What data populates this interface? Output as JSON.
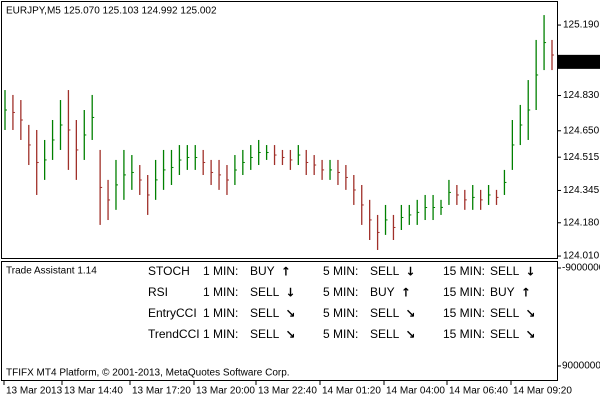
{
  "window": {
    "header": "EURJPY,M5  125.070 125.103 124.992 125.002",
    "footer": "TFIFX MT4 Platform, © 2001-2013, MetaQuotes Software Corp."
  },
  "chart_data": {
    "type": "ohlc-bars",
    "ylim": [
      124.0,
      125.318
    ],
    "yticks": [
      {
        "value": 125.19,
        "label": "125.190"
      },
      {
        "value": 124.83,
        "label": "124.830"
      },
      {
        "value": 124.65,
        "label": "124.650"
      },
      124.515,
      124.345,
      {
        "value": 124.18,
        "label": "124.180"
      },
      {
        "value": 124.01,
        "label": "124.010"
      }
    ],
    "last_price": 125.002,
    "up_color": "#008000",
    "down_color": "#a0302a",
    "high": [
      124.858,
      124.833,
      124.807,
      124.68,
      124.654,
      124.603,
      124.705,
      124.807,
      124.858,
      124.705,
      124.756,
      124.833,
      124.552,
      124.399,
      124.501,
      124.552,
      124.526,
      124.475,
      124.424,
      124.501,
      124.552,
      124.552,
      124.577,
      124.577,
      124.577,
      124.552,
      124.501,
      124.501,
      124.475,
      124.526,
      124.552,
      124.577,
      124.603,
      124.577,
      124.577,
      124.552,
      124.552,
      124.577,
      124.552,
      124.526,
      124.501,
      124.501,
      124.501,
      124.475,
      124.424,
      124.373,
      124.297,
      124.22,
      124.271,
      124.22,
      124.271,
      124.271,
      124.297,
      124.322,
      124.322,
      124.297,
      124.399,
      124.373,
      124.348,
      124.373,
      124.348,
      124.373,
      124.348,
      124.45,
      124.705,
      124.782,
      124.909,
      125.114,
      125.241,
      125.114
    ],
    "low": [
      124.654,
      124.654,
      124.603,
      124.475,
      124.322,
      124.399,
      124.501,
      124.552,
      124.45,
      124.399,
      124.501,
      124.603,
      124.169,
      124.194,
      124.246,
      124.297,
      124.348,
      124.322,
      124.22,
      124.297,
      124.348,
      124.373,
      124.424,
      124.45,
      124.45,
      124.424,
      124.373,
      124.348,
      124.322,
      124.373,
      124.424,
      124.45,
      124.475,
      124.501,
      124.475,
      124.475,
      124.45,
      124.475,
      124.424,
      124.424,
      124.399,
      124.399,
      124.373,
      124.348,
      124.271,
      124.169,
      124.092,
      124.041,
      124.118,
      124.092,
      124.143,
      124.169,
      124.169,
      124.194,
      124.194,
      124.22,
      124.271,
      124.271,
      124.246,
      124.246,
      124.246,
      124.271,
      124.271,
      124.322,
      124.45,
      124.577,
      124.603,
      124.756,
      124.96,
      124.96
    ],
    "x_labels": [
      "13 Mar 2013",
      "13 Mar 14:40",
      "13 Mar 17:20",
      "13 Mar 20:00",
      "13 Mar 22:40",
      "14 Mar 01:20",
      "14 Mar 04:00",
      "14 Mar 06:40",
      "14 Mar 09:20"
    ]
  },
  "indicator": {
    "name": "Trade Assistant 1.14",
    "yticks": [
      -9000000,
      9000000
    ],
    "rows": [
      {
        "label": "STOCH",
        "color": "#e6dca0",
        "cells": [
          {
            "tf": "1 MIN:",
            "signal": "BUY",
            "arrow": "↑",
            "color": "#00c000"
          },
          {
            "tf": "5 MIN:",
            "signal": "SELL",
            "arrow": "↓",
            "color": "#e00000"
          },
          {
            "tf": "15 MIN:",
            "signal": "SELL",
            "arrow": "↓",
            "color": "#e00000"
          }
        ]
      },
      {
        "label": "RSI",
        "color": "#e6d488",
        "cells": [
          {
            "tf": "1 MIN:",
            "signal": "SELL",
            "arrow": "↓",
            "color": "#e00000"
          },
          {
            "tf": "5 MIN:",
            "signal": "BUY",
            "arrow": "↑",
            "color": "#00c000"
          },
          {
            "tf": "15 MIN:",
            "signal": "BUY",
            "arrow": "↑",
            "color": "#00c000"
          }
        ]
      },
      {
        "label": "EntryCCI",
        "color": "#d8c8a0",
        "cells": [
          {
            "tf": "1 MIN:",
            "signal": "SELL",
            "arrow": "↘",
            "color": "#e00000"
          },
          {
            "tf": "5 MIN:",
            "signal": "SELL",
            "arrow": "↘",
            "color": "#e00000"
          },
          {
            "tf": "15 MIN:",
            "signal": "SELL",
            "arrow": "↘",
            "color": "#e00000"
          }
        ]
      },
      {
        "label": "TrendCCI",
        "color": "#c8bca8",
        "cells": [
          {
            "tf": "1 MIN:",
            "signal": "SELL",
            "arrow": "↘",
            "color": "#e00000"
          },
          {
            "tf": "5 MIN:",
            "signal": "SELL",
            "arrow": "↘",
            "color": "#e00000"
          },
          {
            "tf": "15 MIN:",
            "signal": "SELL",
            "arrow": "↘",
            "color": "#e00000"
          }
        ]
      }
    ],
    "tf_color": "#a8b0c4"
  }
}
